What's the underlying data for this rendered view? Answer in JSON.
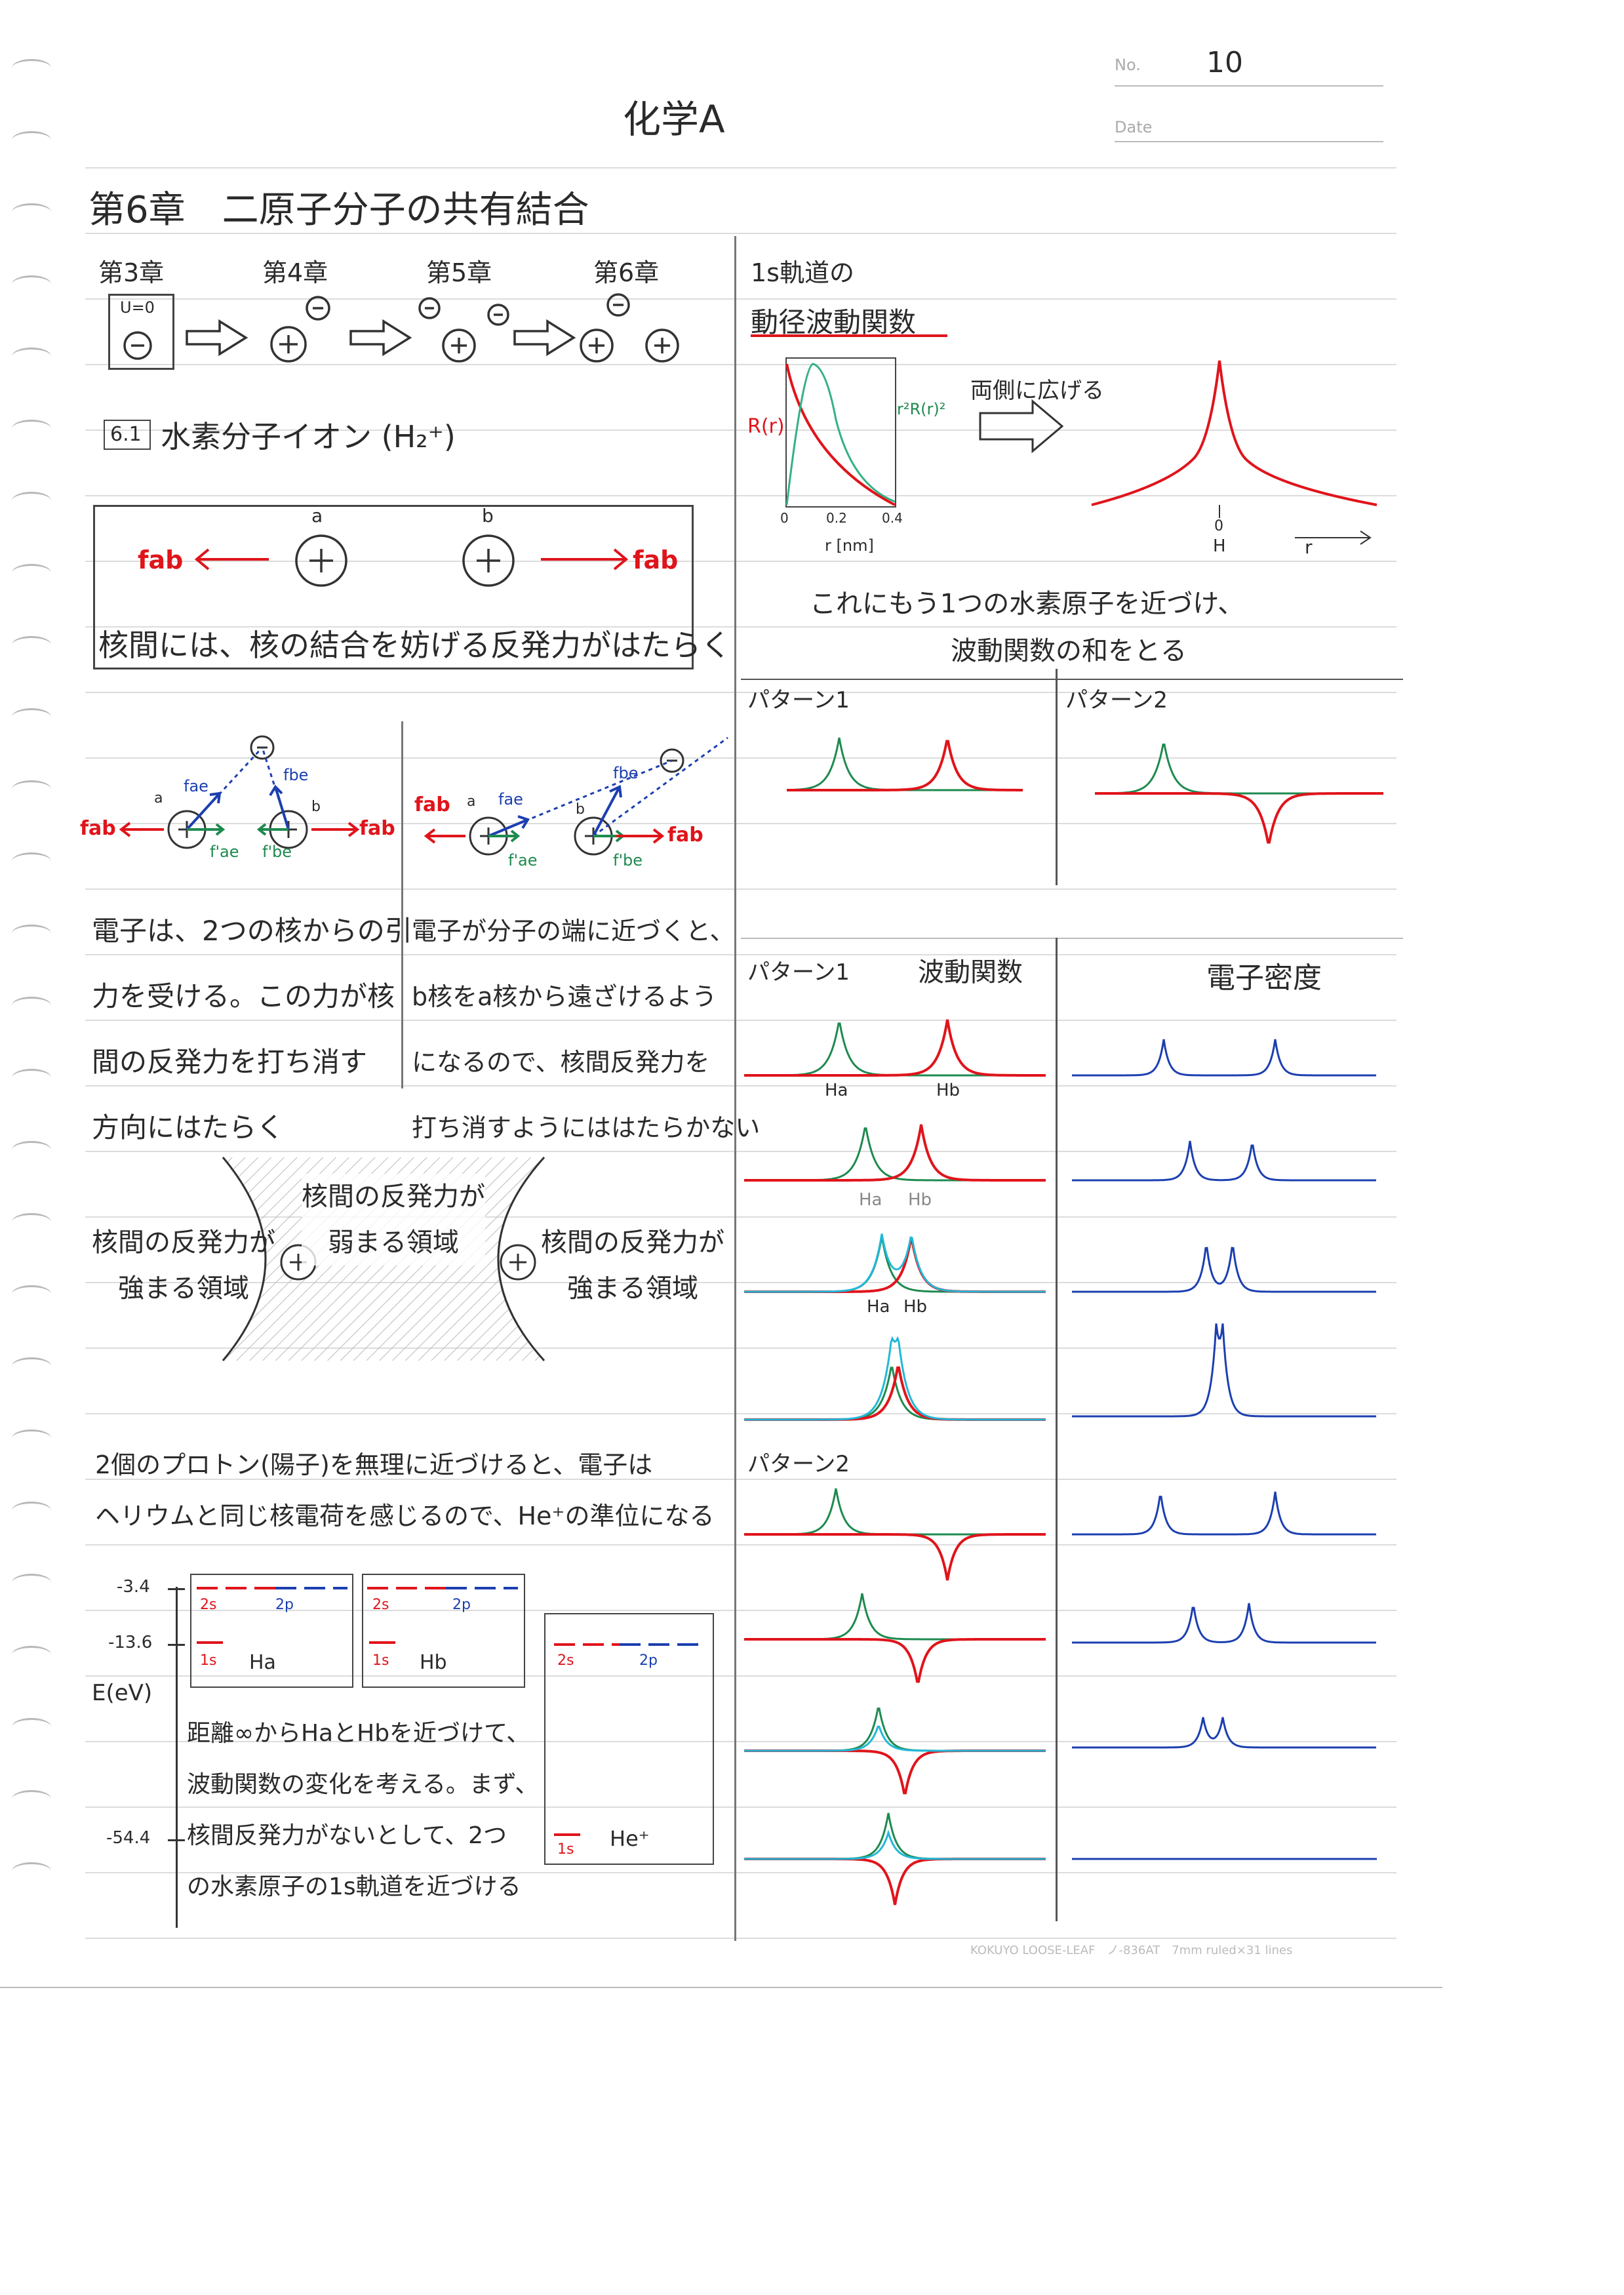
{
  "header": {
    "no_label": "No.",
    "no_value": "10",
    "date_label": "Date",
    "title": "化学A"
  },
  "chapter_title": "第6章　二原子分子の共有結合",
  "chapters": [
    "第3章",
    "第4章",
    "第5章",
    "第6章"
  ],
  "ch3_box_label": "U=0",
  "section": {
    "number": "6.1",
    "title": "水素分子イオン (H₂⁺)"
  },
  "nuclei_box": {
    "label_a": "a",
    "label_b": "b",
    "force_left": "fab",
    "force_right": "fab",
    "caption": "核間には、核の結合を妨げる反発力がはたらく"
  },
  "force_diagrams": {
    "left": {
      "fab": "fab",
      "fae": "fae",
      "fbe": "fbe",
      "fae_prime": "f'ae",
      "fbe_prime": "f'be",
      "a": "a",
      "b": "b"
    },
    "right": {
      "fab": "fab",
      "fae": "fae",
      "fbe": "fbe",
      "fae_prime": "f'ae",
      "fbe_prime": "f'be",
      "a": "a",
      "b": "b"
    }
  },
  "text_left": [
    "電子は、2つの核からの引",
    "力を受ける。この力が核",
    "間の反発力を打ち消す",
    "方向にはたらく"
  ],
  "text_right": [
    "電子が分子の端に近づくと、",
    "b核をa核から遠ざけるよう",
    "になるので、核間反発力を",
    "打ち消すようにははたらかない"
  ],
  "regions": {
    "left": [
      "核間の反発力が",
      "強まる領域"
    ],
    "center": [
      "核間の反発力が",
      "弱まる領域"
    ],
    "right": [
      "核間の反発力が",
      "強まる領域"
    ]
  },
  "proton_text": [
    "2個のプロトン(陽子)を無理に近づけると、電子は",
    "ヘリウムと同じ核電荷を感じるので、He⁺の準位になる"
  ],
  "energy": {
    "axis_label": "E(eV)",
    "ticks": [
      "-3.4",
      "-13.6",
      "-54.4"
    ],
    "box_ha": {
      "l2s": "2s",
      "l2p": "2p",
      "l1s": "1s",
      "name": "Ha"
    },
    "box_hb": {
      "l2s": "2s",
      "l2p": "2p",
      "l1s": "1s",
      "name": "Hb"
    },
    "box_he": {
      "l2s": "2s",
      "l2p": "2p",
      "l1s": "1s",
      "name": "He⁺"
    }
  },
  "distance_text": [
    "距離∞からHaとHbを近づけて、",
    "波動関数の変化を考える。まず、",
    "核間反発力がないとして、2つ",
    "の水素原子の1s軌道を近づける"
  ],
  "radial": {
    "title1": "1s軌道の",
    "title2": "動径波動関数",
    "ylabel_left": "R(r)",
    "ylabel_right": "r²R(r)²",
    "xticks": [
      "0",
      "0.2",
      "0.4"
    ],
    "xlabel": "r [nm]",
    "spread_label": "両側に広げる",
    "right_x0": "0",
    "right_h": "H",
    "right_r": "r"
  },
  "approach_text": [
    "これにもう1つの水素原子を近づけ、",
    "波動関数の和をとる"
  ],
  "patterns": {
    "p1": "パターン1",
    "p2": "パターン2",
    "wave_label": "波動関数",
    "density_label": "電子密度",
    "p1b": "パターン1",
    "p2b": "パターン2",
    "ha": "Ha",
    "hb": "Hb"
  },
  "footer": "KOKUYO LOOSE-LEAF　ノ-836AT　7mm ruled×31 lines",
  "colors": {
    "red": "#e0141b",
    "green": "#1e8a4f",
    "blue": "#1c3fb0",
    "cyan": "#22b8d8"
  }
}
